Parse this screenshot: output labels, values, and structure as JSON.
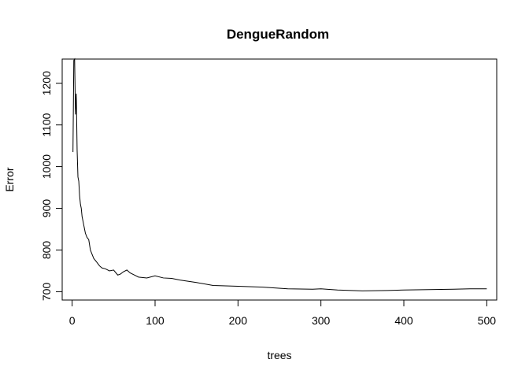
{
  "chart_data": {
    "type": "line",
    "title": "DengueRandom",
    "xlabel": "trees",
    "ylabel": "Error",
    "xlim": [
      -12,
      512
    ],
    "ylim": [
      680,
      1258
    ],
    "xticks": [
      0,
      100,
      200,
      300,
      400,
      500
    ],
    "yticks": [
      700,
      800,
      900,
      1000,
      1100,
      1200
    ],
    "xtick_labels": [
      "0",
      "100",
      "200",
      "300",
      "400",
      "500"
    ],
    "ytick_labels": [
      "700",
      "800",
      "900",
      "1000",
      "1100",
      "1200"
    ],
    "grid": false,
    "legend": "none",
    "line_color": "#000000",
    "series": [
      {
        "x": [
          1,
          2,
          3,
          4,
          5,
          6,
          7,
          8,
          9,
          10,
          11,
          12,
          13,
          14,
          15,
          16,
          18,
          20,
          22,
          24,
          26,
          28,
          30,
          33,
          36,
          40,
          45,
          50,
          55,
          58,
          62,
          66,
          70,
          75,
          80,
          90,
          100,
          110,
          120,
          130,
          150,
          170,
          200,
          230,
          260,
          290,
          300,
          320,
          350,
          380,
          400,
          430,
          460,
          480,
          500
        ],
        "y": [
          1035,
          1255,
          1258,
          1125,
          1175,
          1040,
          975,
          965,
          930,
          910,
          900,
          880,
          870,
          860,
          850,
          840,
          830,
          825,
          800,
          790,
          780,
          775,
          770,
          762,
          757,
          755,
          750,
          752,
          740,
          742,
          748,
          752,
          745,
          740,
          735,
          733,
          738,
          733,
          732,
          728,
          722,
          715,
          713,
          711,
          707,
          706,
          707,
          704,
          702,
          703,
          704,
          705,
          706,
          707,
          707
        ]
      }
    ]
  }
}
